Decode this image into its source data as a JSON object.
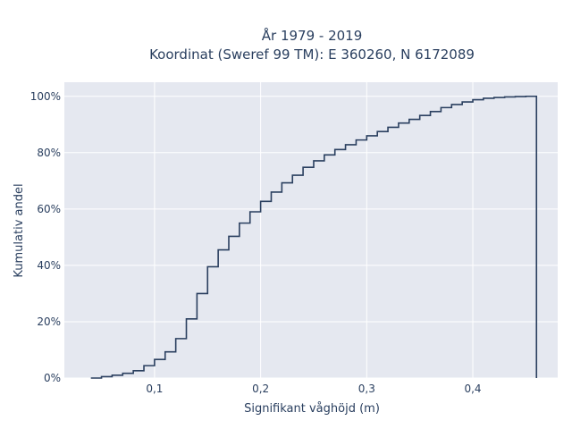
{
  "chart_data": {
    "type": "line",
    "subtype": "ecdf-step",
    "title_line1": "År 1979 - 2019",
    "title_line2": "Koordinat (Sweref 99 TM): E 360260, N 6172089",
    "xlabel": "Signifikant våghöjd (m)",
    "ylabel": "Kumulativ andel",
    "xlim": [
      0.015,
      0.48
    ],
    "ylim": [
      0,
      1.05
    ],
    "x_ticks": [
      0.1,
      0.2,
      0.3,
      0.4
    ],
    "x_tick_labels": [
      "0,1",
      "0,2",
      "0,3",
      "0,4"
    ],
    "y_ticks": [
      0,
      0.2,
      0.4,
      0.6,
      0.8,
      1.0
    ],
    "y_tick_labels": [
      "0%",
      "20%",
      "40%",
      "60%",
      "80%",
      "100%"
    ],
    "grid": true,
    "line_color": "#2a3f5f",
    "plot_background": "#e5e8f0",
    "series": [
      {
        "x": [
          0.04,
          0.05,
          0.06,
          0.07,
          0.08,
          0.09,
          0.1,
          0.11,
          0.12,
          0.13,
          0.14,
          0.15,
          0.16,
          0.17,
          0.18,
          0.19,
          0.2,
          0.21,
          0.22,
          0.23,
          0.24,
          0.25,
          0.26,
          0.27,
          0.28,
          0.29,
          0.3,
          0.31,
          0.32,
          0.33,
          0.34,
          0.35,
          0.36,
          0.37,
          0.38,
          0.39,
          0.4,
          0.41,
          0.42,
          0.43,
          0.44,
          0.45,
          0.46
        ],
        "y": [
          0.0,
          0.005,
          0.01,
          0.017,
          0.026,
          0.044,
          0.066,
          0.093,
          0.14,
          0.21,
          0.3,
          0.395,
          0.455,
          0.503,
          0.55,
          0.59,
          0.627,
          0.66,
          0.693,
          0.72,
          0.748,
          0.771,
          0.792,
          0.811,
          0.828,
          0.845,
          0.86,
          0.875,
          0.89,
          0.905,
          0.918,
          0.932,
          0.946,
          0.96,
          0.971,
          0.98,
          0.988,
          0.993,
          0.996,
          0.998,
          0.999,
          1.0,
          0.0
        ]
      }
    ]
  }
}
